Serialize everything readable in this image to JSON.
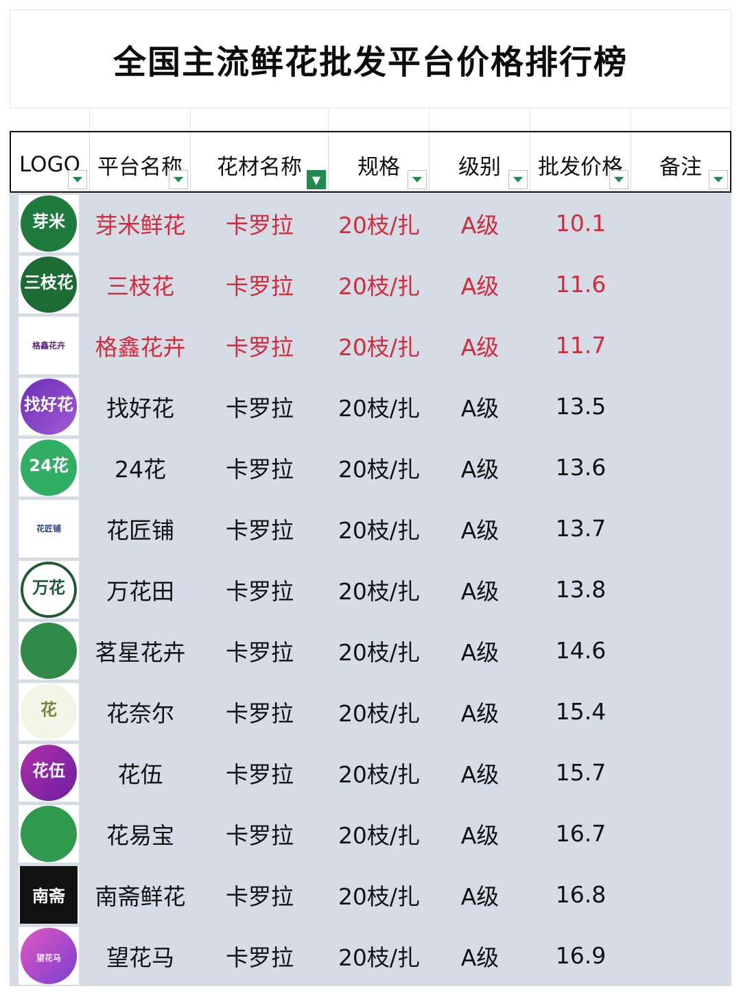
{
  "title": "全国主流鲜花批发平台价格排行榜",
  "headers": [
    "LOGO",
    "平台名称",
    "花材名称",
    "规格",
    "级别",
    "批发价格",
    "备注"
  ],
  "colors": {
    "highlight": "#d42a3c",
    "body_bg": "#d6dce5",
    "filter_green": "#1e8a4c"
  },
  "rows": [
    {
      "logo": "芽米",
      "logo_sub": "",
      "name": "芽米鲜花",
      "flower": "卡罗拉",
      "spec": "20枝/扎",
      "grade": "A级",
      "price": "10.1",
      "note": ""
    },
    {
      "logo": "三枝花",
      "logo_sub": "",
      "name": "三枝花",
      "flower": "卡罗拉",
      "spec": "20枝/扎",
      "grade": "A级",
      "price": "11.6",
      "note": ""
    },
    {
      "logo": "",
      "logo_sub": "格鑫花卉",
      "name": "格鑫花卉",
      "flower": "卡罗拉",
      "spec": "20枝/扎",
      "grade": "A级",
      "price": "11.7",
      "note": ""
    },
    {
      "logo": "找好花",
      "logo_sub": "",
      "name": "找好花",
      "flower": "卡罗拉",
      "spec": "20枝/扎",
      "grade": "A级",
      "price": "13.5",
      "note": ""
    },
    {
      "logo": "24花",
      "logo_sub": "",
      "name": "24花",
      "flower": "卡罗拉",
      "spec": "20枝/扎",
      "grade": "A级",
      "price": "13.6",
      "note": ""
    },
    {
      "logo": "",
      "logo_sub": "花匠铺",
      "name": "花匠铺",
      "flower": "卡罗拉",
      "spec": "20枝/扎",
      "grade": "A级",
      "price": "13.7",
      "note": ""
    },
    {
      "logo": "万花",
      "logo_sub": "",
      "name": "万花田",
      "flower": "卡罗拉",
      "spec": "20枝/扎",
      "grade": "A级",
      "price": "13.8",
      "note": ""
    },
    {
      "logo": "",
      "logo_sub": "",
      "name": "茗星花卉",
      "flower": "卡罗拉",
      "spec": "20枝/扎",
      "grade": "A级",
      "price": "14.6",
      "note": ""
    },
    {
      "logo": "花",
      "logo_sub": "",
      "name": "花奈尔",
      "flower": "卡罗拉",
      "spec": "20枝/扎",
      "grade": "A级",
      "price": "15.4",
      "note": ""
    },
    {
      "logo": "花伍",
      "logo_sub": "",
      "name": "花伍",
      "flower": "卡罗拉",
      "spec": "20枝/扎",
      "grade": "A级",
      "price": "15.7",
      "note": ""
    },
    {
      "logo": "",
      "logo_sub": "",
      "name": "花易宝",
      "flower": "卡罗拉",
      "spec": "20枝/扎",
      "grade": "A级",
      "price": "16.7",
      "note": ""
    },
    {
      "logo": "南斋",
      "logo_sub": "",
      "name": "南斋鲜花",
      "flower": "卡罗拉",
      "spec": "20枝/扎",
      "grade": "A级",
      "price": "16.8",
      "note": ""
    },
    {
      "logo": "",
      "logo_sub": "望花马",
      "name": "望花马",
      "flower": "卡罗拉",
      "spec": "20枝/扎",
      "grade": "A级",
      "price": "16.9",
      "note": ""
    }
  ]
}
